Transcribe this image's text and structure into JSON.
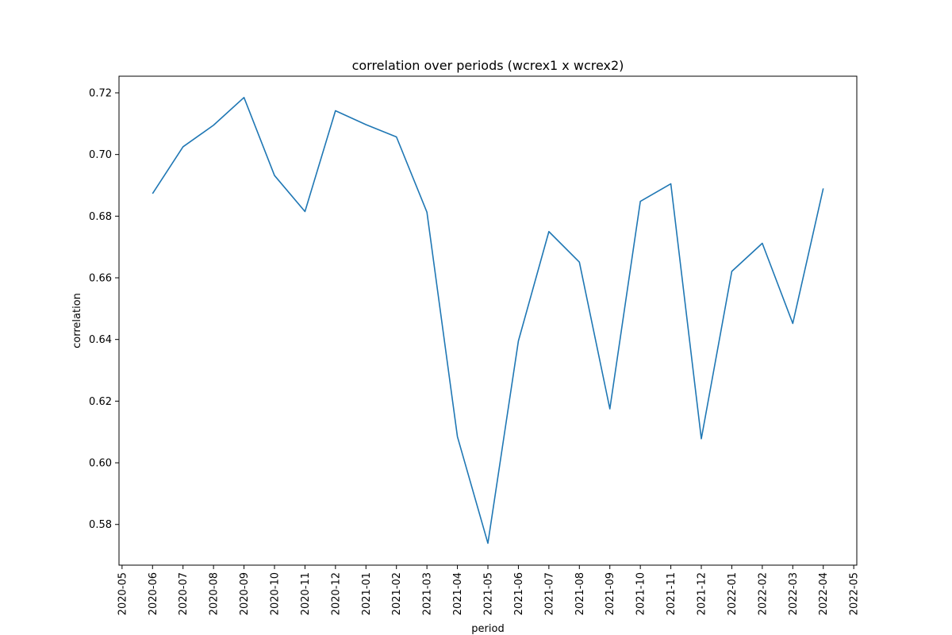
{
  "chart_data": {
    "type": "line",
    "title": "correlation over periods (wcrex1 x wcrex2)",
    "xlabel": "period",
    "ylabel": "correlation",
    "x_ticks": [
      "2020-05",
      "2020-06",
      "2020-07",
      "2020-08",
      "2020-09",
      "2020-10",
      "2020-11",
      "2020-12",
      "2021-01",
      "2021-02",
      "2021-03",
      "2021-04",
      "2021-05",
      "2021-06",
      "2021-07",
      "2021-08",
      "2021-09",
      "2021-10",
      "2021-11",
      "2021-12",
      "2022-01",
      "2022-02",
      "2022-03",
      "2022-04",
      "2022-05"
    ],
    "y_ticks": [
      "0.58",
      "0.60",
      "0.62",
      "0.64",
      "0.66",
      "0.68",
      "0.70",
      "0.72"
    ],
    "ylim": [
      0.5668,
      0.7254
    ],
    "xlim": [
      "2020-05",
      "2022-05"
    ],
    "grid": false,
    "series": [
      {
        "color": "#1f77b4",
        "points": [
          {
            "x": "2020-06",
            "y": 0.6873
          },
          {
            "x": "2020-07",
            "y": 0.7025
          },
          {
            "x": "2020-08",
            "y": 0.7095
          },
          {
            "x": "2020-09",
            "y": 0.7185
          },
          {
            "x": "2020-10",
            "y": 0.6932
          },
          {
            "x": "2020-11",
            "y": 0.6815
          },
          {
            "x": "2020-12",
            "y": 0.7142
          },
          {
            "x": "2021-01",
            "y": 0.7097
          },
          {
            "x": "2021-02",
            "y": 0.7057
          },
          {
            "x": "2021-03",
            "y": 0.6813
          },
          {
            "x": "2021-04",
            "y": 0.6085
          },
          {
            "x": "2021-05",
            "y": 0.5739
          },
          {
            "x": "2021-06",
            "y": 0.6395
          },
          {
            "x": "2021-07",
            "y": 0.675
          },
          {
            "x": "2021-08",
            "y": 0.6651
          },
          {
            "x": "2021-09",
            "y": 0.6175
          },
          {
            "x": "2021-10",
            "y": 0.6848
          },
          {
            "x": "2021-11",
            "y": 0.6905
          },
          {
            "x": "2021-12",
            "y": 0.6078
          },
          {
            "x": "2022-01",
            "y": 0.6621
          },
          {
            "x": "2022-02",
            "y": 0.6712
          },
          {
            "x": "2022-03",
            "y": 0.6452
          },
          {
            "x": "2022-04",
            "y": 0.689
          }
        ]
      }
    ]
  }
}
